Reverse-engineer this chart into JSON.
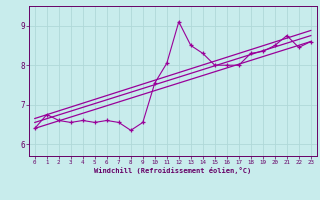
{
  "title": "",
  "xlabel": "Windchill (Refroidissement éolien,°C)",
  "ylabel": "",
  "bg_color": "#c8ecec",
  "grid_color": "#b0d8d8",
  "line_color": "#990099",
  "text_color": "#660066",
  "axis_color": "#660066",
  "xlim": [
    -0.5,
    23.5
  ],
  "ylim": [
    5.7,
    9.5
  ],
  "yticks": [
    6,
    7,
    8,
    9
  ],
  "xticks": [
    0,
    1,
    2,
    3,
    4,
    5,
    6,
    7,
    8,
    9,
    10,
    11,
    12,
    13,
    14,
    15,
    16,
    17,
    18,
    19,
    20,
    21,
    22,
    23
  ],
  "scatter_x": [
    0,
    1,
    2,
    3,
    4,
    5,
    6,
    7,
    8,
    9,
    10,
    11,
    12,
    13,
    14,
    15,
    16,
    17,
    18,
    19,
    20,
    21,
    22,
    23
  ],
  "scatter_y": [
    6.4,
    6.75,
    6.6,
    6.55,
    6.6,
    6.55,
    6.6,
    6.55,
    6.35,
    6.55,
    7.55,
    8.05,
    9.1,
    8.5,
    8.3,
    8.0,
    8.0,
    8.0,
    8.3,
    8.35,
    8.5,
    8.75,
    8.45,
    8.6
  ],
  "line1_x": [
    0,
    23
  ],
  "line1_y": [
    6.4,
    8.6
  ],
  "line2_x": [
    0,
    23
  ],
  "line2_y": [
    6.55,
    8.75
  ],
  "line3_x": [
    0,
    23
  ],
  "line3_y": [
    6.65,
    8.88
  ]
}
